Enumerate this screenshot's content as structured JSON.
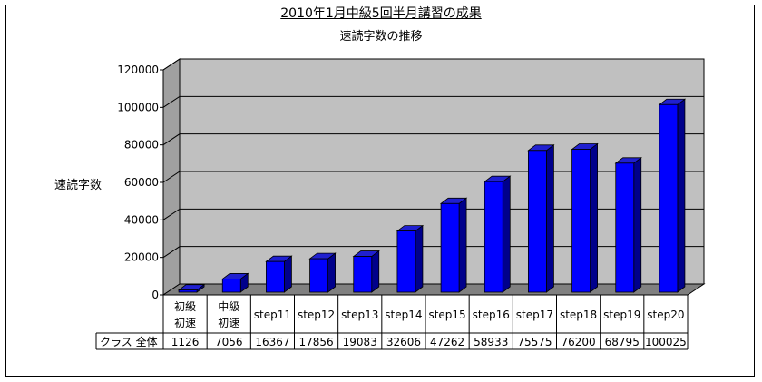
{
  "chart_data": {
    "type": "bar",
    "title": "2010年1月中級5回半月講習の成果",
    "subtitle": "速読字数の推移",
    "ylabel": "速読字数",
    "ylim": [
      0,
      120000
    ],
    "yticks": [
      "0",
      "20000",
      "40000",
      "60000",
      "80000",
      "100000",
      "120000"
    ],
    "categories": [
      [
        "初級",
        "初速"
      ],
      [
        "中級",
        "初速"
      ],
      [
        "step11"
      ],
      [
        "step12"
      ],
      [
        "step13"
      ],
      [
        "step14"
      ],
      [
        "step15"
      ],
      [
        "step16"
      ],
      [
        "step17"
      ],
      [
        "step18"
      ],
      [
        "step19"
      ],
      [
        "step20"
      ]
    ],
    "series": [
      {
        "name": "クラス 全体",
        "values": [
          1126,
          7056,
          16367,
          17856,
          19083,
          32606,
          47262,
          58933,
          75575,
          76200,
          68795,
          100025
        ],
        "labels": [
          "1126",
          "7056",
          "16367",
          "17856",
          "19083",
          "32606",
          "47262",
          "58933",
          "75575",
          "76200",
          "68795",
          "100025"
        ]
      }
    ],
    "grid": true,
    "colors": {
      "bar_front": "#0000ff",
      "bar_side": "#00008b",
      "bar_top": "#2020d0",
      "plot_back": "#c0c0c0",
      "plot_wall": "#a0a0a0",
      "floor": "#808080"
    }
  }
}
